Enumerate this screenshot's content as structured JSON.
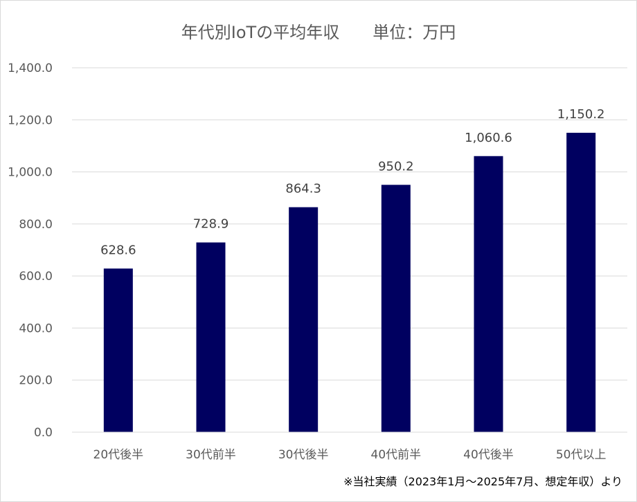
{
  "chart_data": {
    "type": "bar",
    "title": "年代別IoTの平均年収　　単位：万円",
    "categories": [
      "20代後半",
      "30代前半",
      "30代後半",
      "40代前半",
      "40代後半",
      "50代以上"
    ],
    "values": [
      628.6,
      728.9,
      864.3,
      950.2,
      1060.6,
      1150.2
    ],
    "value_labels": [
      "628.6",
      "728.9",
      "864.3",
      "950.2",
      "1,060.6",
      "1,150.2"
    ],
    "ylim": [
      0,
      1400
    ],
    "yticks": [
      "0.0",
      "200.0",
      "400.0",
      "600.0",
      "800.0",
      "1,000.0",
      "1,200.0",
      "1,400.0"
    ],
    "xlabel": "",
    "ylabel": "",
    "grid": true,
    "bar_color": "#000060",
    "grid_color": "#d9d9d9"
  },
  "footnote": "※当社実績（2023年1月～2025年7月、想定年収）より"
}
